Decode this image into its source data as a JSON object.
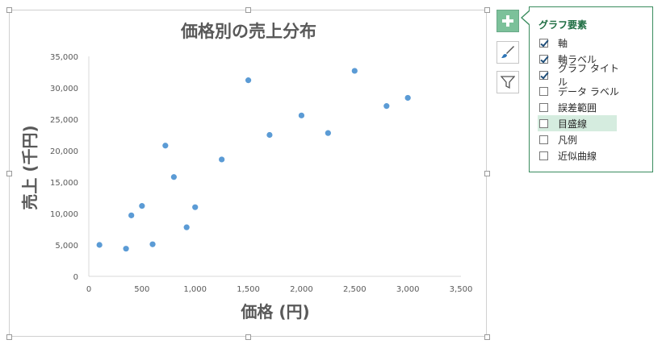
{
  "chart_data": {
    "type": "scatter",
    "title": "価格別の売上分布",
    "xlabel": "価格 (円)",
    "ylabel": "売上 (千円)",
    "xlim": [
      0,
      3500
    ],
    "ylim": [
      0,
      35000
    ],
    "xticks": [
      "0",
      "500",
      "1,000",
      "1,500",
      "2,000",
      "2,500",
      "3,000",
      "3,500"
    ],
    "yticks": [
      "0",
      "5,000",
      "10,000",
      "15,000",
      "20,000",
      "25,000",
      "30,000",
      "35,000"
    ],
    "grid": false,
    "legend": "none",
    "marker_color": "#5b9bd5",
    "points": [
      {
        "x": 100,
        "y": 5000
      },
      {
        "x": 350,
        "y": 4400
      },
      {
        "x": 400,
        "y": 9700
      },
      {
        "x": 500,
        "y": 11200
      },
      {
        "x": 600,
        "y": 5100
      },
      {
        "x": 720,
        "y": 20800
      },
      {
        "x": 800,
        "y": 15800
      },
      {
        "x": 920,
        "y": 7800
      },
      {
        "x": 1000,
        "y": 11000
      },
      {
        "x": 1250,
        "y": 18600
      },
      {
        "x": 1500,
        "y": 31200
      },
      {
        "x": 1700,
        "y": 22500
      },
      {
        "x": 2000,
        "y": 25600
      },
      {
        "x": 2250,
        "y": 22800
      },
      {
        "x": 2500,
        "y": 32700
      },
      {
        "x": 2800,
        "y": 27100
      },
      {
        "x": 3000,
        "y": 28400
      }
    ]
  },
  "side_buttons": [
    {
      "name": "chart-elements-button",
      "icon": "plus-icon",
      "active": true
    },
    {
      "name": "chart-styles-button",
      "icon": "paintbrush-icon",
      "active": false
    },
    {
      "name": "chart-filters-button",
      "icon": "filter-icon",
      "active": false
    }
  ],
  "chart_elements_panel": {
    "title": "グラフ要素",
    "accent_color": "#3a8c5e",
    "items": [
      {
        "label": "軸",
        "checked": true,
        "highlighted": false
      },
      {
        "label": "軸ラベル",
        "checked": true,
        "highlighted": false
      },
      {
        "label": "グラフ タイトル",
        "checked": true,
        "highlighted": false
      },
      {
        "label": "データ ラベル",
        "checked": false,
        "highlighted": false
      },
      {
        "label": "誤差範囲",
        "checked": false,
        "highlighted": false
      },
      {
        "label": "目盛線",
        "checked": false,
        "highlighted": true
      },
      {
        "label": "凡例",
        "checked": false,
        "highlighted": false
      },
      {
        "label": "近似曲線",
        "checked": false,
        "highlighted": false
      }
    ]
  }
}
